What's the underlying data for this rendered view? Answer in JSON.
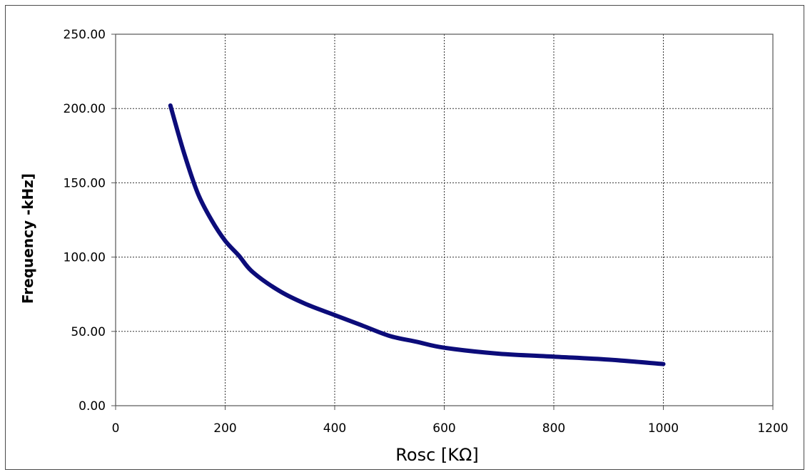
{
  "chart_data": {
    "type": "line",
    "title": "",
    "xlabel": "Rosc [KΩ]",
    "ylabel": "Frequency -kHz]",
    "xlim": [
      0,
      1200
    ],
    "ylim": [
      0,
      250
    ],
    "x_ticks": [
      0,
      200,
      400,
      600,
      800,
      1000,
      1200
    ],
    "y_ticks": [
      0,
      50,
      100,
      150,
      200,
      250
    ],
    "x_tick_labels": [
      "0",
      "200",
      "400",
      "600",
      "800",
      "1000",
      "1200"
    ],
    "y_tick_labels": [
      "0.00",
      "50.00",
      "100.00",
      "150.00",
      "200.00",
      "250.00"
    ],
    "grid": true,
    "legend": "none",
    "series": [
      {
        "color": "#0c0c7a",
        "x": [
          100,
          125,
          150,
          175,
          200,
          225,
          250,
          300,
          350,
          400,
          450,
          500,
          550,
          600,
          700,
          800,
          900,
          1000
        ],
        "y": [
          202,
          170,
          143,
          125,
          111,
          101,
          90,
          77,
          68,
          61,
          54,
          47,
          43,
          39,
          35,
          33,
          31,
          28
        ]
      }
    ]
  }
}
